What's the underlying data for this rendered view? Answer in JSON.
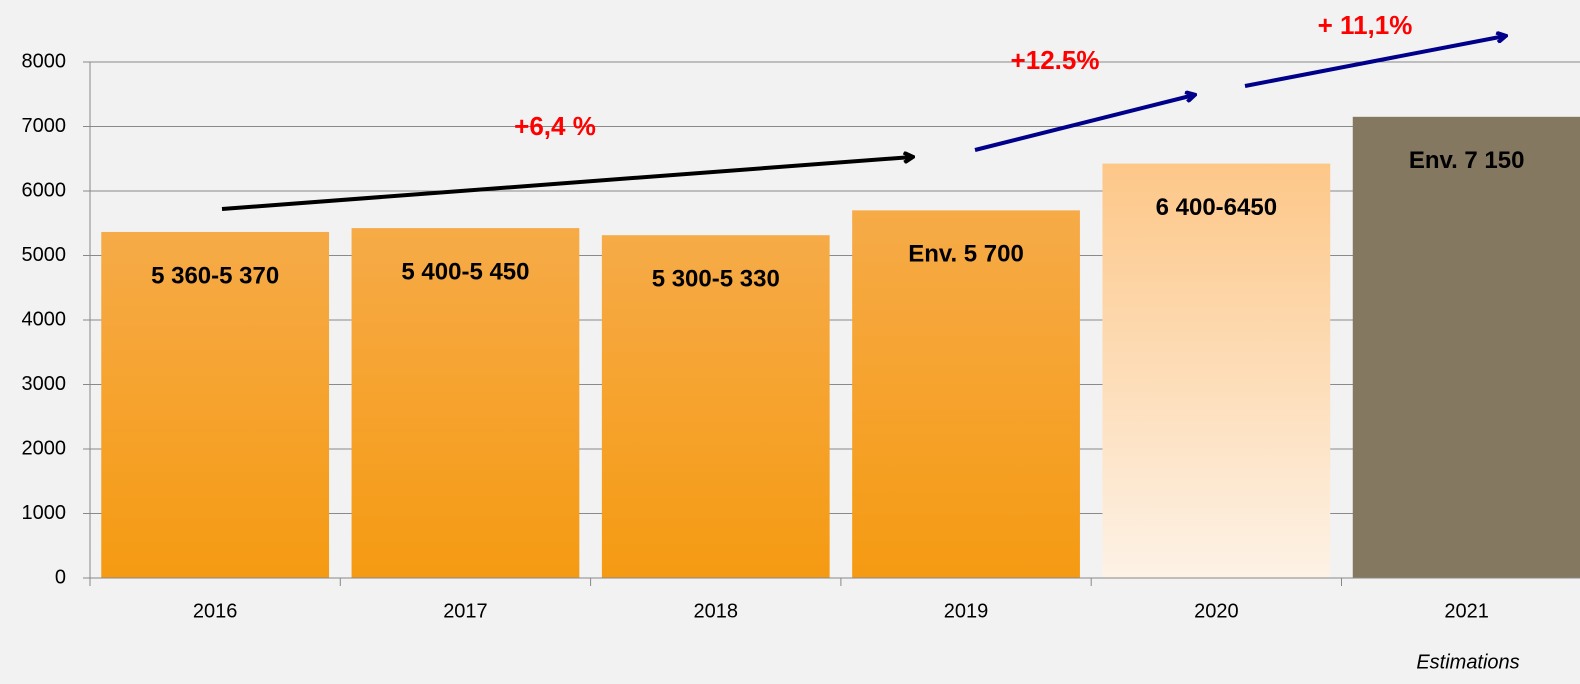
{
  "chart_data": {
    "type": "bar",
    "categories": [
      "2016",
      "2017",
      "2018",
      "2019",
      "2020",
      "2021"
    ],
    "values": [
      5365,
      5425,
      5315,
      5700,
      6425,
      7150
    ],
    "value_labels": [
      "5 360-5 370",
      "5 400-5 450",
      "5 300-5 330",
      "Env. 5 700",
      "6 400-6450",
      "Env. 7 150"
    ],
    "colors": [
      [
        "#f6ab48",
        "#f59a12"
      ],
      [
        "#f6ab48",
        "#f59a12"
      ],
      [
        "#f6ab48",
        "#f59a12"
      ],
      [
        "#f6ab48",
        "#f59a12"
      ],
      [
        "#fdc788",
        "#fdf2e6"
      ],
      [
        "#857860",
        "#857860"
      ]
    ],
    "ylim": [
      0,
      8000
    ],
    "yticks": [
      0,
      1000,
      2000,
      3000,
      4000,
      5000,
      6000,
      7000,
      8000
    ],
    "grid": true,
    "annotations": [
      "+6,4 %",
      "+12.5%",
      "+ 11,1%"
    ],
    "note": "Estimations"
  }
}
